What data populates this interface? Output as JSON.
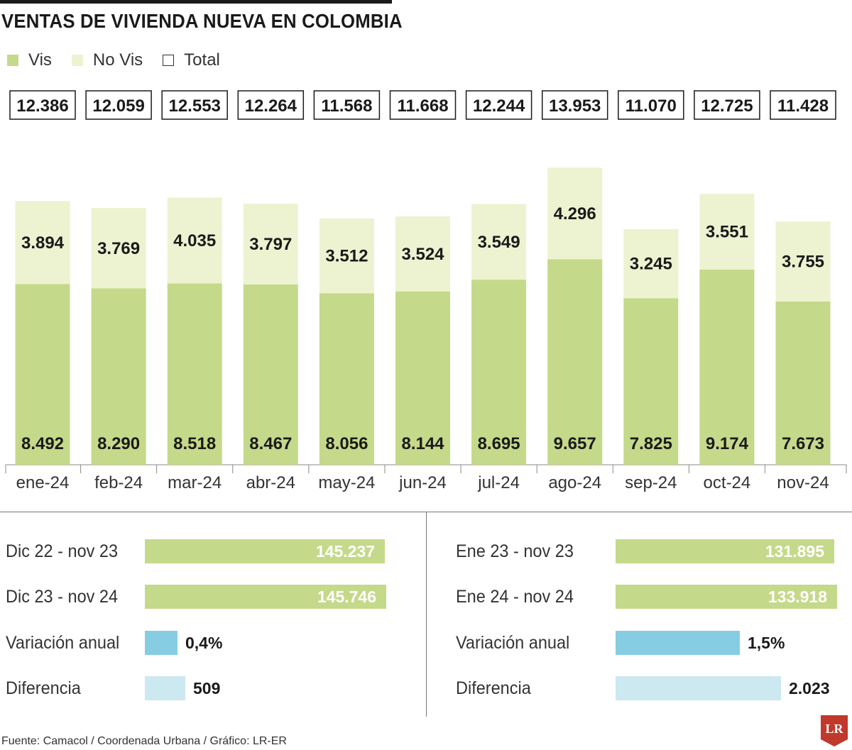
{
  "title": "VENTAS DE VIVIENDA NUEVA EN COLOMBIA",
  "legend": [
    {
      "label": "Vis",
      "color": "#c5d98a"
    },
    {
      "label": "No Vis",
      "color": "#edf2d0"
    },
    {
      "label": "Total",
      "color": "#ffffff"
    }
  ],
  "chart_data": {
    "type": "bar",
    "stacked": true,
    "categories": [
      "ene-24",
      "feb-24",
      "mar-24",
      "abr-24",
      "may-24",
      "jun-24",
      "jul-24",
      "ago-24",
      "sep-24",
      "oct-24",
      "nov-24"
    ],
    "series": [
      {
        "name": "Vis",
        "color": "#c5d98a",
        "values": [
          8492,
          8290,
          8518,
          8467,
          8056,
          8144,
          8695,
          9657,
          7825,
          9174,
          7673
        ],
        "labels": [
          "8.492",
          "8.290",
          "8.518",
          "8.467",
          "8.056",
          "8.144",
          "8.695",
          "9.657",
          "7.825",
          "9.174",
          "7.673"
        ]
      },
      {
        "name": "No Vis",
        "color": "#edf2d0",
        "values": [
          3894,
          3769,
          4035,
          3797,
          3512,
          3524,
          3549,
          4296,
          3245,
          3551,
          3755
        ],
        "labels": [
          "3.894",
          "3.769",
          "4.035",
          "3.797",
          "3.512",
          "3.524",
          "3.549",
          "4.296",
          "3.245",
          "3.551",
          "3.755"
        ]
      }
    ],
    "totals": {
      "name": "Total",
      "values": [
        12386,
        12059,
        12553,
        12264,
        11568,
        11668,
        12244,
        13953,
        11070,
        12725,
        11428
      ],
      "labels": [
        "12.386",
        "12.059",
        "12.553",
        "12.264",
        "11.568",
        "11.668",
        "12.244",
        "13.953",
        "11.070",
        "12.725",
        "11.428"
      ]
    }
  },
  "comparison_panels": [
    {
      "rows": [
        {
          "label": "Dic 22 - nov 23",
          "value": 145237,
          "display": "145.237",
          "kind": "period"
        },
        {
          "label": "Dic 23 - nov 24",
          "value": 145746,
          "display": "145.746",
          "kind": "period"
        },
        {
          "label": "Variación anual",
          "value": 0.4,
          "display": "0,4%",
          "kind": "variation"
        },
        {
          "label": "Diferencia",
          "value": 509,
          "display": "509",
          "kind": "difference"
        }
      ]
    },
    {
      "rows": [
        {
          "label": "Ene 23 - nov 23",
          "value": 131895,
          "display": "131.895",
          "kind": "period"
        },
        {
          "label": "Ene 24 - nov 24",
          "value": 133918,
          "display": "133.918",
          "kind": "period"
        },
        {
          "label": "Variación anual",
          "value": 1.5,
          "display": "1,5%",
          "kind": "variation"
        },
        {
          "label": "Diferencia",
          "value": 2023,
          "display": "2.023",
          "kind": "difference"
        }
      ]
    }
  ],
  "colors": {
    "vis": "#c5d98a",
    "no_vis": "#edf2d0",
    "variation": "#86cde3",
    "difference": "#cce8f1",
    "text": "#1a1a1a",
    "logo": "#c0392b"
  },
  "source": "Fuente: Camacol / Coordenada Urbana / Gráfico: LR-ER",
  "logo_text": "LR"
}
